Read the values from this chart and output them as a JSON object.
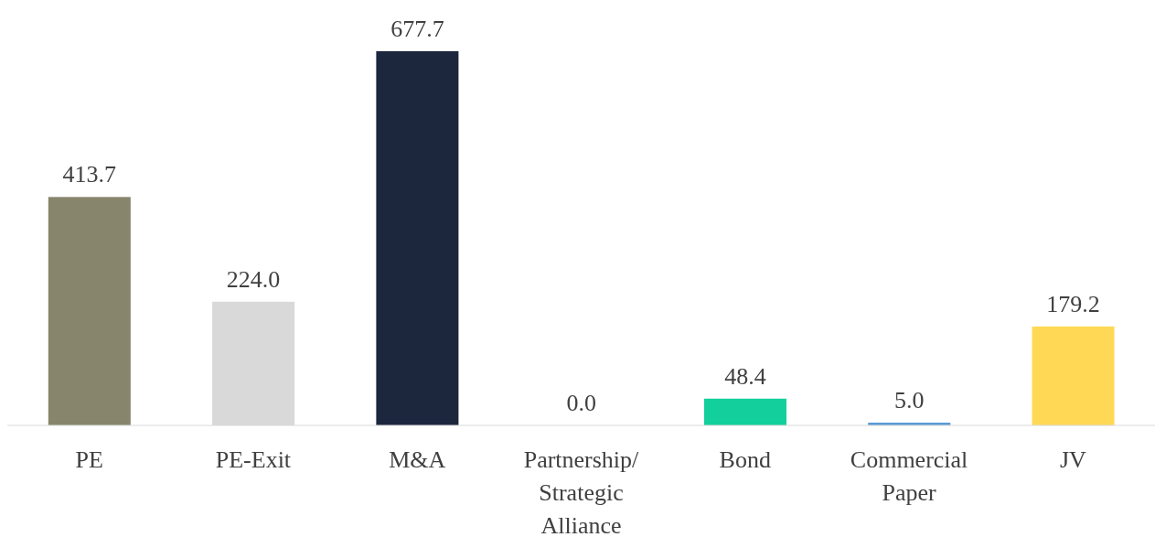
{
  "chart_data": {
    "type": "bar",
    "categories": [
      "PE",
      "PE-Exit",
      "M&A",
      "Partnership/ Strategic Alliance",
      "Bond",
      "Commercial Paper",
      "JV"
    ],
    "values": [
      413.7,
      224.0,
      677.7,
      0.0,
      48.4,
      5.0,
      179.2
    ],
    "value_labels": [
      "413.7",
      "224.0",
      "677.7",
      "0.0",
      "48.4",
      "5.0",
      "179.2"
    ],
    "colors": [
      "#87866c",
      "#d9d9d9",
      "#1c263d",
      "#4472c4",
      "#12cf9c",
      "#5b9bd5",
      "#ffd955"
    ]
  }
}
